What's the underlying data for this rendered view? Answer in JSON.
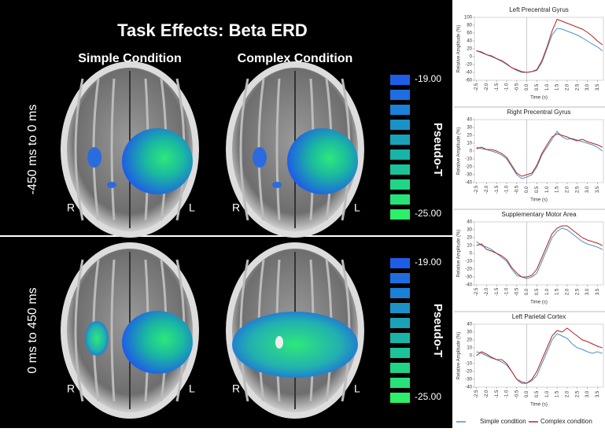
{
  "brain_panel": {
    "title": "Task Effects: Beta ERD",
    "columns": [
      "Simple Condition",
      "Complex Condition"
    ],
    "rows": [
      "-450 ms to 0 ms",
      "0 ms to 450 ms"
    ],
    "hemisphere_labels": [
      "R",
      "L"
    ],
    "colorbar": {
      "label": "Pseudo-T",
      "top": "-19.00",
      "bottom": "-25.00"
    }
  },
  "chart_data": [
    {
      "type": "line",
      "title": "Left Precentral Gyrus",
      "x_label": "Time (s)",
      "y_label": "Relative Amplitude (%)",
      "x": [
        -2.5,
        -2.25,
        -2,
        -1.75,
        -1.5,
        -1.25,
        -1,
        -0.75,
        -0.5,
        -0.25,
        0,
        0.25,
        0.5,
        0.75,
        1,
        1.25,
        1.5,
        1.75,
        2,
        2.25,
        2.5,
        2.75,
        3,
        3.25,
        3.5,
        3.75
      ],
      "series": [
        {
          "name": "Simple condition",
          "color": "#4a90c8",
          "values": [
            15,
            10,
            5,
            0,
            -5,
            -12,
            -20,
            -28,
            -35,
            -40,
            -40,
            -38,
            -35,
            -15,
            20,
            55,
            72,
            70,
            65,
            60,
            55,
            48,
            40,
            32,
            25,
            15
          ]
        },
        {
          "name": "Complex condition",
          "color": "#b22222",
          "values": [
            15,
            12,
            5,
            2,
            -5,
            -10,
            -18,
            -28,
            -33,
            -38,
            -40,
            -38,
            -33,
            -10,
            25,
            65,
            95,
            90,
            85,
            80,
            75,
            70,
            62,
            52,
            40,
            30
          ]
        }
      ],
      "xlim": [
        -2.6,
        3.8
      ],
      "xticks": [
        {
          "value": -2.5,
          "label": "-2.5"
        },
        {
          "value": -2,
          "label": "-2.0"
        },
        {
          "value": -1.5,
          "label": "-1.5"
        },
        {
          "value": -1,
          "label": "-1.0"
        },
        {
          "value": -0.5,
          "label": "-0.5"
        },
        {
          "value": 0,
          "label": "0.0"
        },
        {
          "value": 0.5,
          "label": "0.5"
        },
        {
          "value": 1,
          "label": "1.0"
        },
        {
          "value": 1.5,
          "label": "1.5"
        },
        {
          "value": 2,
          "label": "2.0"
        },
        {
          "value": 2.5,
          "label": "2.5"
        },
        {
          "value": 3,
          "label": "3.0"
        },
        {
          "value": 3.5,
          "label": "3.5"
        }
      ],
      "ylim": [
        -60,
        100
      ],
      "yticks": [
        -60,
        -40,
        -20,
        0,
        20,
        40,
        60,
        80,
        100
      ]
    },
    {
      "type": "line",
      "title": "Right Precentral Gyrus",
      "x_label": "Time (s)",
      "y_label": "Relative Amplitude (%)",
      "x": [
        -2.5,
        -2.25,
        -2,
        -1.75,
        -1.5,
        -1.25,
        -1,
        -0.75,
        -0.5,
        -0.25,
        0,
        0.25,
        0.5,
        0.75,
        1,
        1.25,
        1.5,
        1.75,
        2,
        2.25,
        2.5,
        2.75,
        3,
        3.25,
        3.5,
        3.75
      ],
      "series": [
        {
          "color": "#4a90c8",
          "values": [
            5,
            3,
            2,
            0,
            -2,
            -5,
            -10,
            -20,
            -30,
            -35,
            -33,
            -30,
            -20,
            -5,
            5,
            15,
            25,
            18,
            15,
            16,
            14,
            12,
            10,
            8,
            5,
            0
          ]
        },
        {
          "color": "#b22222",
          "values": [
            3,
            5,
            2,
            2,
            0,
            -3,
            -8,
            -18,
            -28,
            -32,
            -30,
            -28,
            -18,
            -3,
            8,
            18,
            22,
            20,
            18,
            15,
            13,
            15,
            12,
            10,
            8,
            5
          ]
        }
      ],
      "xlim": [
        -2.6,
        3.8
      ],
      "xticks": [
        {
          "value": -2.5,
          "label": "-2.5"
        },
        {
          "value": -2,
          "label": "-2.0"
        },
        {
          "value": -1.5,
          "label": "-1.5"
        },
        {
          "value": -1,
          "label": "-1.0"
        },
        {
          "value": -0.5,
          "label": "-0.5"
        },
        {
          "value": 0,
          "label": "0.0"
        },
        {
          "value": 0.5,
          "label": "0.5"
        },
        {
          "value": 1,
          "label": "1.0"
        },
        {
          "value": 1.5,
          "label": "1.5"
        },
        {
          "value": 2,
          "label": "2.0"
        },
        {
          "value": 2.5,
          "label": "2.5"
        },
        {
          "value": 3,
          "label": "3.0"
        },
        {
          "value": 3.5,
          "label": "3.5"
        }
      ],
      "ylim": [
        -40,
        40
      ],
      "yticks": [
        -40,
        -30,
        -20,
        -10,
        0,
        10,
        20,
        30,
        40
      ]
    },
    {
      "type": "line",
      "title": "Supplementary Motor Area",
      "x_label": "Time (s)",
      "y_label": "Relative Amplitude (%)",
      "x": [
        -2.5,
        -2.25,
        -2,
        -1.75,
        -1.5,
        -1.25,
        -1,
        -0.75,
        -0.5,
        -0.25,
        0,
        0.25,
        0.5,
        0.75,
        1,
        1.25,
        1.5,
        1.75,
        2,
        2.25,
        2.5,
        2.75,
        3,
        3.25,
        3.5,
        3.75
      ],
      "series": [
        {
          "color": "#4a90c8",
          "values": [
            15,
            10,
            8,
            5,
            0,
            -5,
            -10,
            -20,
            -28,
            -30,
            -32,
            -30,
            -25,
            -10,
            5,
            20,
            28,
            32,
            30,
            25,
            20,
            15,
            12,
            10,
            8,
            5
          ]
        },
        {
          "color": "#b22222",
          "values": [
            10,
            12,
            5,
            3,
            0,
            -3,
            -8,
            -18,
            -25,
            -30,
            -30,
            -28,
            -20,
            -5,
            10,
            25,
            32,
            35,
            35,
            30,
            25,
            20,
            17,
            15,
            13,
            10
          ]
        }
      ],
      "xlim": [
        -2.6,
        3.8
      ],
      "xticks": [
        {
          "value": -2.5,
          "label": "-2.5"
        },
        {
          "value": -2,
          "label": "-2.0"
        },
        {
          "value": -1.5,
          "label": "-1.5"
        },
        {
          "value": -1,
          "label": "-1.0"
        },
        {
          "value": -0.5,
          "label": "-0.5"
        },
        {
          "value": 0,
          "label": "0.0"
        },
        {
          "value": 0.5,
          "label": "0.5"
        },
        {
          "value": 1,
          "label": "1.0"
        },
        {
          "value": 1.5,
          "label": "1.5"
        },
        {
          "value": 2,
          "label": "2.0"
        },
        {
          "value": 2.5,
          "label": "2.5"
        },
        {
          "value": 3,
          "label": "3.0"
        },
        {
          "value": 3.5,
          "label": "3.5"
        }
      ],
      "ylim": [
        -40,
        40
      ],
      "yticks": [
        -40,
        -30,
        -20,
        -10,
        0,
        10,
        20,
        30,
        40
      ]
    },
    {
      "type": "line",
      "title": "Left Parietal Cortex",
      "x_label": "Time (s)",
      "y_label": "Relative Amplitude (%)",
      "x": [
        -2.5,
        -2.25,
        -2,
        -1.75,
        -1.5,
        -1.25,
        -1,
        -0.75,
        -0.5,
        -0.25,
        0,
        0.25,
        0.5,
        0.75,
        1,
        1.25,
        1.5,
        1.75,
        2,
        2.25,
        2.5,
        2.75,
        3,
        3.25,
        3.5,
        3.75
      ],
      "series": [
        {
          "color": "#4a90c8",
          "values": [
            5,
            3,
            0,
            -3,
            -5,
            -8,
            -12,
            -20,
            -30,
            -33,
            -35,
            -32,
            -25,
            -10,
            5,
            20,
            28,
            25,
            22,
            15,
            10,
            8,
            5,
            3,
            5,
            3
          ]
        },
        {
          "color": "#b22222",
          "values": [
            0,
            5,
            2,
            -2,
            -5,
            -5,
            -10,
            -20,
            -30,
            -35,
            -35,
            -30,
            -20,
            -5,
            10,
            25,
            32,
            30,
            35,
            30,
            25,
            20,
            18,
            15,
            12,
            10
          ]
        }
      ],
      "xlim": [
        -2.6,
        3.8
      ],
      "xticks": [
        {
          "value": -2.5,
          "label": "-2.5"
        },
        {
          "value": -2,
          "label": "-2.0"
        },
        {
          "value": -1.5,
          "label": "-1.5"
        },
        {
          "value": -1,
          "label": "-1.0"
        },
        {
          "value": -0.5,
          "label": "-0.5"
        },
        {
          "value": 0,
          "label": "0.0"
        },
        {
          "value": 0.5,
          "label": "0.5"
        },
        {
          "value": 1,
          "label": "1.0"
        },
        {
          "value": 1.5,
          "label": "1.5"
        },
        {
          "value": 2,
          "label": "2.0"
        },
        {
          "value": 2.5,
          "label": "2.5"
        },
        {
          "value": 3,
          "label": "3.0"
        },
        {
          "value": 3.5,
          "label": "3.5"
        }
      ],
      "ylim": [
        -40,
        40
      ],
      "yticks": [
        -40,
        -30,
        -20,
        -10,
        0,
        10,
        20,
        30,
        40
      ]
    }
  ]
}
